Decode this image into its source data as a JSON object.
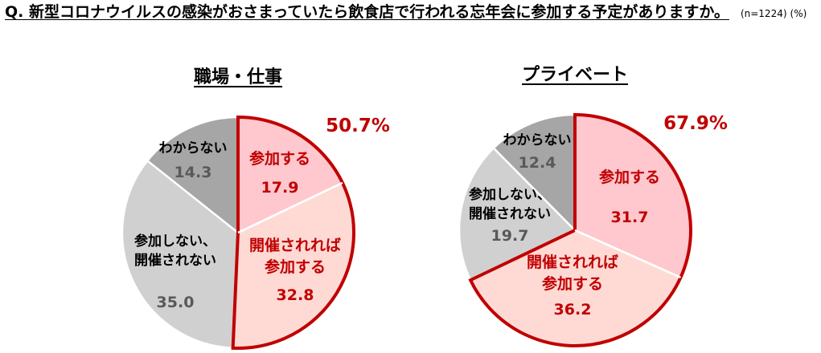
{
  "question": {
    "text": "Q. 新型コロナウイルスの感染がおさまっていたら飲食店で行われる忘年会に参加する予定がありますか。",
    "sample": "(n=1224)",
    "unit": "(%)"
  },
  "colors": {
    "attend": "#ffc7ce",
    "attend_if": "#ffdad5",
    "no": "#d0d0d0",
    "dontknow": "#a6a6a6",
    "highlight": "#c00000",
    "label_red": "#c00000",
    "label_gray": "#595959"
  },
  "chart_data": [
    {
      "type": "pie",
      "title": "職場・仕事",
      "total_label": "50.7%",
      "slices": [
        {
          "key": "attend",
          "label": "参加する",
          "value": 17.9,
          "value_label": "17.9"
        },
        {
          "key": "attend_if",
          "label": "開催されれば参加する",
          "value": 32.8,
          "value_label": "32.8"
        },
        {
          "key": "no",
          "label": "参加しない、開催されない",
          "value": 35.0,
          "value_label": "35.0"
        },
        {
          "key": "dontknow",
          "label": "わからない",
          "value": 14.3,
          "value_label": "14.3"
        }
      ]
    },
    {
      "type": "pie",
      "title": "プライベート",
      "total_label": "67.9%",
      "slices": [
        {
          "key": "attend",
          "label": "参加する",
          "value": 31.7,
          "value_label": "31.7"
        },
        {
          "key": "attend_if",
          "label": "開催されれば参加する",
          "value": 36.2,
          "value_label": "36.2"
        },
        {
          "key": "no",
          "label": "参加しない、開催されない",
          "value": 19.7,
          "value_label": "19.7"
        },
        {
          "key": "dontknow",
          "label": "わからない",
          "value": 12.4,
          "value_label": "12.4"
        }
      ]
    }
  ]
}
